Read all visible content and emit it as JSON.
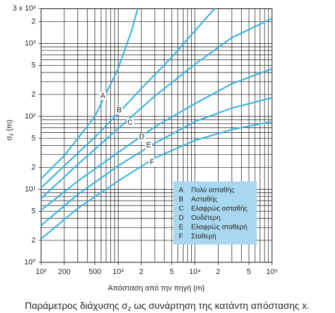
{
  "chart_data": {
    "type": "line",
    "log_x": true,
    "log_y": true,
    "grid": true,
    "y_label": [
      "σ",
      "z",
      " (m)"
    ],
    "x_label": "Απόσταση από την πηγή (m)",
    "caption": [
      "Παράμετρος διάχυσης σ",
      "z",
      " ως συνάρτηση της κατάντη απόστασης x."
    ],
    "xlim": [
      100,
      100000
    ],
    "ylim": [
      1,
      3000
    ],
    "xticks": [
      {
        "value": 100,
        "label": "10²"
      },
      200,
      500,
      {
        "value": 1000,
        "label": "10³"
      },
      {
        "value": 2000,
        "label": "2"
      },
      {
        "value": 5000,
        "label": "5"
      },
      {
        "value": 10000,
        "label": "10⁴"
      },
      {
        "value": 20000,
        "label": "2"
      },
      {
        "value": 50000,
        "label": "5"
      },
      {
        "value": 100000,
        "label": "10⁵"
      }
    ],
    "yticks": [
      {
        "value": 1,
        "label": "10⁰"
      },
      2,
      5,
      {
        "value": 10,
        "label": "10¹"
      },
      {
        "value": 20,
        "label": "2"
      },
      {
        "value": 50,
        "label": "5"
      },
      {
        "value": 100,
        "label": "10²"
      },
      {
        "value": 200,
        "label": "2"
      },
      {
        "value": 500,
        "label": "5"
      },
      {
        "value": 1000,
        "label": "10³"
      },
      {
        "value": 2000,
        "label": "2"
      },
      {
        "value": 3000,
        "label": "3 x 10³"
      }
    ],
    "minor_xticks": [
      300,
      400,
      600,
      700,
      800,
      900,
      3000,
      4000,
      6000,
      7000,
      8000,
      9000,
      30000,
      40000,
      60000,
      70000,
      80000,
      90000
    ],
    "minor_yticks": [
      3,
      4,
      6,
      7,
      8,
      9,
      30,
      40,
      60,
      70,
      80,
      90,
      300,
      400,
      600,
      700,
      800,
      900
    ],
    "series": [
      {
        "name": "A",
        "description": "Πολύ ασταθής",
        "color": "#3db4e0",
        "x": [
          100,
          200,
          500,
          1000,
          1500,
          1800
        ],
        "values": [
          14,
          29,
          100,
          450,
          1500,
          3000
        ]
      },
      {
        "name": "B",
        "description": "Ασταθής",
        "color": "#3db4e0",
        "x": [
          100,
          200,
          500,
          1000,
          2000,
          5000,
          10000,
          18000
        ],
        "values": [
          10.5,
          21,
          52,
          110,
          240,
          650,
          1500,
          3000
        ]
      },
      {
        "name": "C",
        "description": "Ελαφρώς ασταθής",
        "color": "#3db4e0",
        "x": [
          100,
          300,
          1000,
          3000,
          10000,
          30000,
          100000
        ],
        "values": [
          7.5,
          22,
          68,
          190,
          520,
          1200,
          2200
        ]
      },
      {
        "name": "D",
        "description": "Ουδέτερη",
        "color": "#3db4e0",
        "x": [
          100,
          300,
          1000,
          3000,
          10000,
          30000,
          100000
        ],
        "values": [
          5.2,
          13,
          32,
          72,
          150,
          280,
          450
        ]
      },
      {
        "name": "E",
        "description": "Ελαφρώς σταθερή",
        "color": "#3db4e0",
        "x": [
          100,
          300,
          1000,
          3000,
          10000,
          30000,
          100000
        ],
        "values": [
          3.2,
          8.5,
          21,
          43,
          85,
          130,
          180
        ]
      },
      {
        "name": "F",
        "description": "Σταθερή",
        "color": "#3db4e0",
        "x": [
          100,
          300,
          1000,
          3000,
          10000,
          30000,
          100000
        ],
        "values": [
          2.1,
          5.5,
          13,
          27,
          47,
          66,
          85
        ]
      }
    ],
    "legend_color": "#a8d8ef"
  }
}
